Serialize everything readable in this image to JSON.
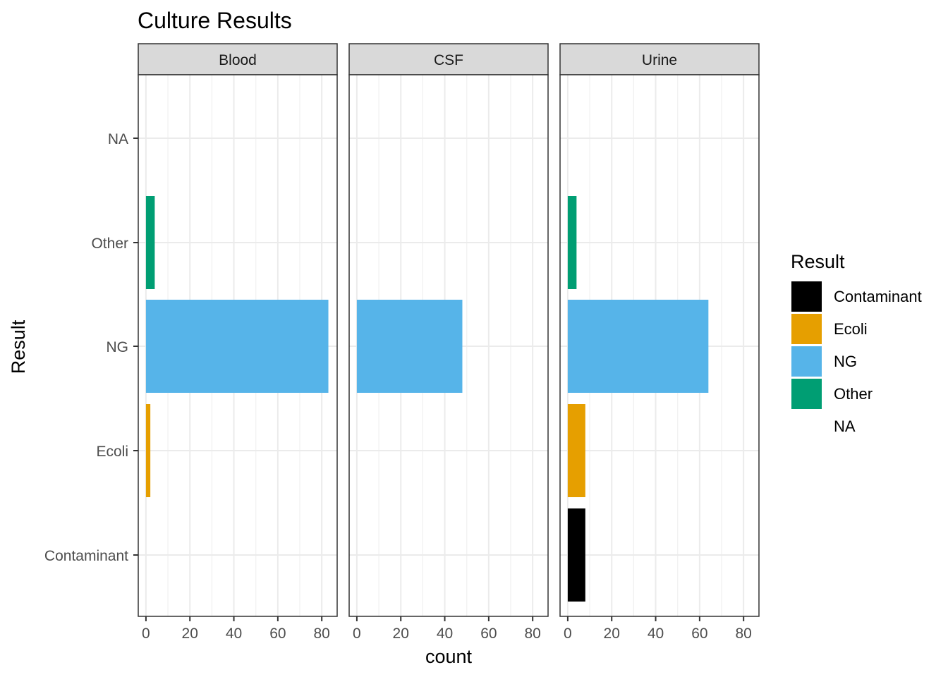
{
  "chart_data": {
    "type": "bar",
    "orientation": "horizontal",
    "title": "Culture Results",
    "xlabel": "count",
    "ylabel": "Result",
    "categories": [
      "Contaminant",
      "Ecoli",
      "NG",
      "Other",
      "NA"
    ],
    "x_ticks": [
      "0",
      "20",
      "40",
      "60",
      "80"
    ],
    "xlim": [
      -3.5,
      87
    ],
    "grid": true,
    "facets": [
      {
        "name": "Blood",
        "values": {
          "Contaminant": 0,
          "Ecoli": 2,
          "NG": 83,
          "Other": 4,
          "NA": 0
        }
      },
      {
        "name": "CSF",
        "values": {
          "Contaminant": 0,
          "Ecoli": 0,
          "NG": 48,
          "Other": 0,
          "NA": 0
        }
      },
      {
        "name": "Urine",
        "values": {
          "Contaminant": 8,
          "Ecoli": 8,
          "NG": 64,
          "Other": 4,
          "NA": 0
        }
      }
    ],
    "legend": {
      "title": "Result",
      "position": "right",
      "entries": [
        {
          "label": "Contaminant",
          "color": "#000000"
        },
        {
          "label": "Ecoli",
          "color": "#E69F00"
        },
        {
          "label": "NG",
          "color": "#56B4E9"
        },
        {
          "label": "Other",
          "color": "#009E73"
        },
        {
          "label": "NA",
          "color": "transparent"
        }
      ]
    }
  }
}
